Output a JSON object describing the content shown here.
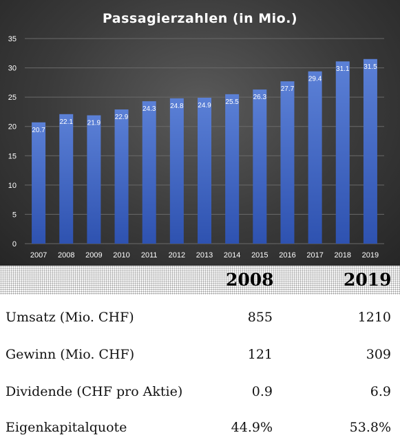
{
  "chart_data": {
    "type": "bar",
    "title": "Passagierzahlen  (in Mio.)",
    "categories": [
      "2007",
      "2008",
      "2009",
      "2010",
      "2011",
      "2012",
      "2013",
      "2014",
      "2015",
      "2016",
      "2017",
      "2018",
      "2019"
    ],
    "values": [
      20.7,
      22.1,
      21.9,
      22.9,
      24.3,
      24.8,
      24.9,
      25.5,
      26.3,
      27.7,
      29.4,
      31.1,
      31.5
    ],
    "data_labels": [
      "20.7",
      "22.1",
      "21.9",
      "22.9",
      "24.3",
      "24.8",
      "24.9",
      "25.5",
      "26.3",
      "27.7",
      "29.4",
      "31.1",
      "31.5"
    ],
    "ylim": [
      0,
      35
    ],
    "yticks": [
      "0",
      "5",
      "10",
      "15",
      "20",
      "25",
      "30",
      "35"
    ],
    "grid": true,
    "legend": "none",
    "colors": {
      "bar": "#4a6fc9",
      "bar_dark": "#2e4fa8",
      "text": "#ffffff"
    }
  },
  "table": {
    "headers": [
      "2008",
      "2019"
    ],
    "rows": [
      {
        "label": "Umsatz (Mio. CHF)",
        "v2008": "855",
        "v2019": "1210"
      },
      {
        "label": "Gewinn (Mio. CHF)",
        "v2008": "121",
        "v2019": "309"
      },
      {
        "label": "Dividende (CHF pro Aktie)",
        "v2008": "0.9",
        "v2019": "6.9"
      },
      {
        "label": "Eigenkapitalquote",
        "v2008": "44.9%",
        "v2019": "53.8%"
      }
    ]
  }
}
